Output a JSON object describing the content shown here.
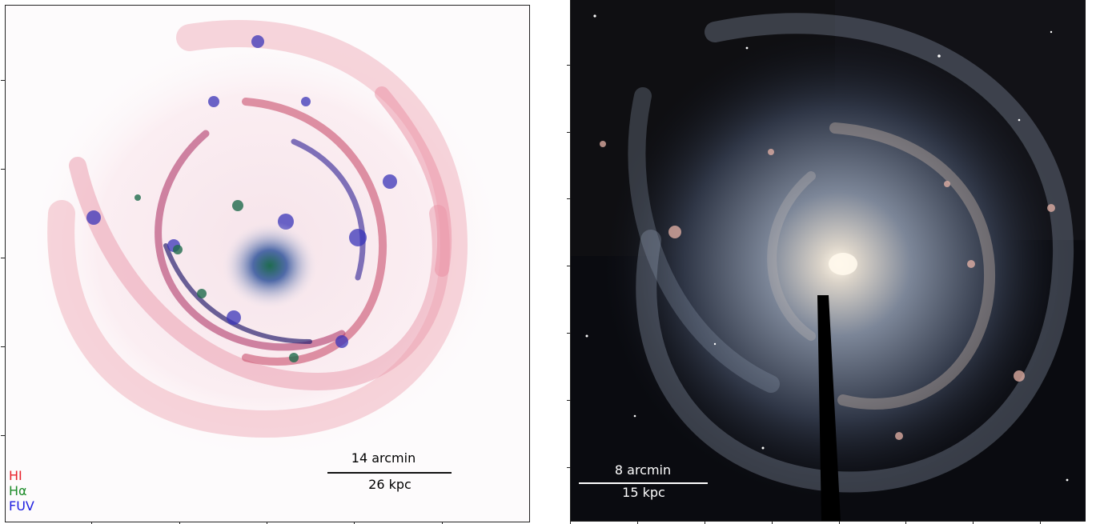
{
  "left_panel": {
    "scalebar_top": "14 arcmin",
    "scalebar_bottom": "26 kpc",
    "legend": [
      {
        "label": "HI",
        "color": "#e8202a"
      },
      {
        "label": "Hα",
        "color": "#1e8c2a"
      },
      {
        "label": "FUV",
        "color": "#2020e0"
      }
    ]
  },
  "right_panel": {
    "scalebar_top": "8 arcmin",
    "scalebar_bottom": "15 kpc"
  }
}
